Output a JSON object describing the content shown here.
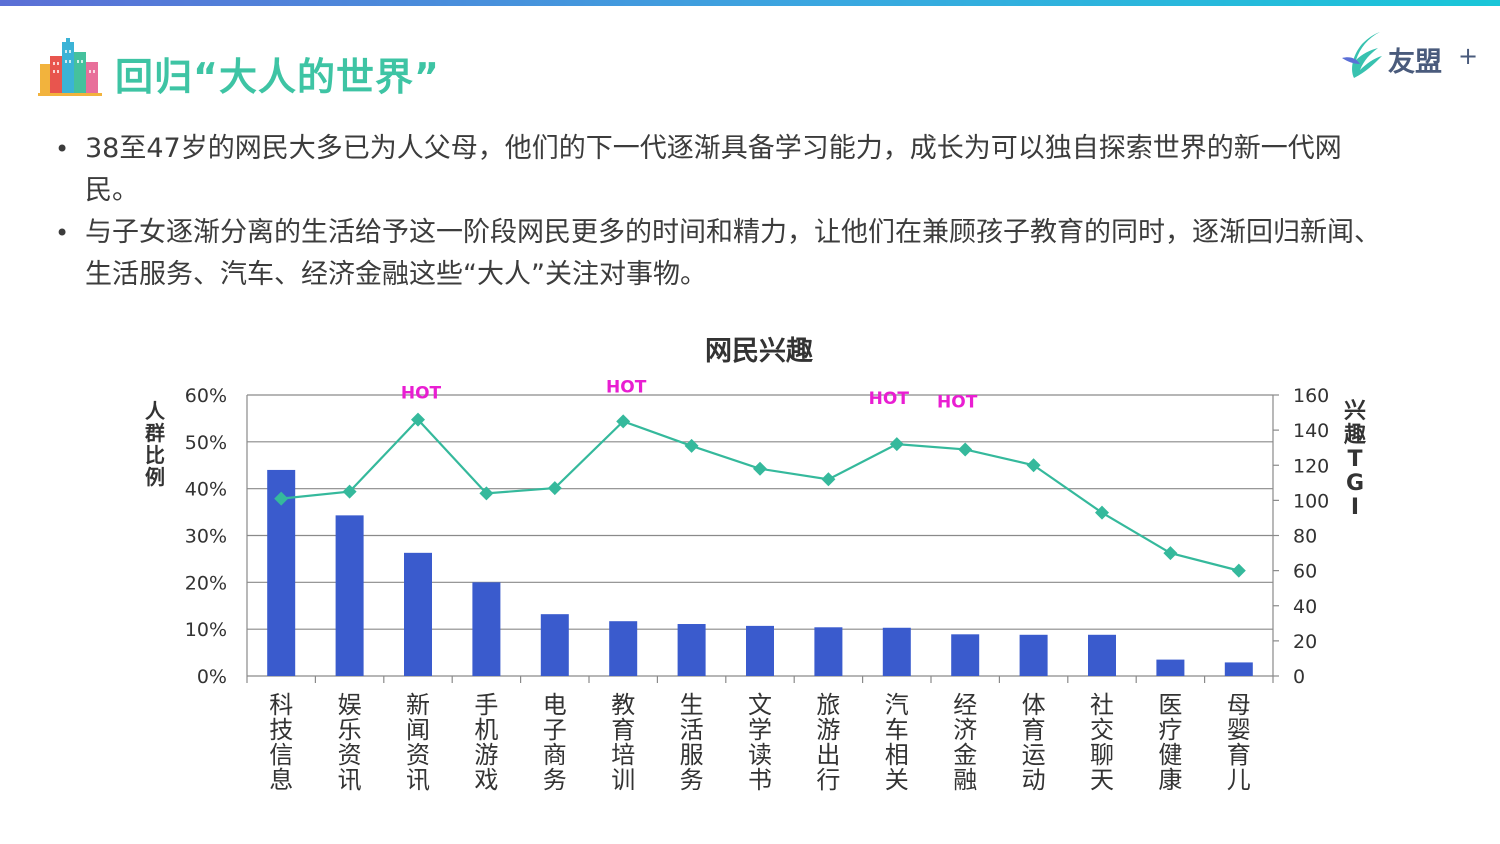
{
  "slide": {
    "title": "回归“大人的世界”",
    "brand": {
      "name": "友盟",
      "plus": "+"
    },
    "bullets": [
      "38至47岁的网民大多已为人父母，他们的下一代逐渐具备学习能力，成长为可以独自探索世界的新一代网民。",
      "与子女逐渐分离的生活给予这一阶段网民更多的时间和精力，让他们在兼顾孩子教育的同时，逐渐回归新闻、生活服务、汽车、经济金融这些“大人”关注对事物。"
    ],
    "bullet_marker": "•"
  },
  "colors": {
    "title": "#3ec4a4",
    "bar": "#3a5bcd",
    "line": "#35b99c",
    "hot": "#e91ed2"
  },
  "chart_data": {
    "type": "bar",
    "title": "网民兴趣",
    "categories": [
      "科技信息",
      "娱乐资讯",
      "新闻资讯",
      "手机游戏",
      "电子商务",
      "教育培训",
      "生活服务",
      "文学读书",
      "旅游出行",
      "汽车相关",
      "经济金融",
      "体育运动",
      "社交聊天",
      "医疗健康",
      "母婴育儿"
    ],
    "y_left": {
      "label": "人群比例",
      "ylim": [
        0,
        60
      ],
      "ticks": [
        "0%",
        "10%",
        "20%",
        "30%",
        "40%",
        "50%",
        "60%"
      ]
    },
    "y_right": {
      "label": "兴趣TGI",
      "ylim": [
        0,
        160
      ],
      "ticks": [
        "0",
        "20",
        "40",
        "60",
        "80",
        "100",
        "120",
        "140",
        "160"
      ]
    },
    "series": [
      {
        "type": "bar",
        "axis": "left",
        "unit": "%",
        "values": [
          44.0,
          34.3,
          26.3,
          20.0,
          13.2,
          11.7,
          11.1,
          10.7,
          10.4,
          10.3,
          8.9,
          8.8,
          8.8,
          3.5,
          2.9
        ]
      },
      {
        "type": "line",
        "axis": "right",
        "values": [
          101,
          105,
          146,
          104,
          107,
          145,
          131,
          118,
          112,
          132,
          129,
          120,
          93,
          70,
          60
        ]
      }
    ],
    "annotations": [
      {
        "category": "新闻资讯",
        "text": "HOT"
      },
      {
        "category": "教育培训",
        "text": "HOT"
      },
      {
        "category": "汽车相关",
        "text": "HOT"
      },
      {
        "category": "经济金融",
        "text": "HOT"
      }
    ],
    "grid": true
  }
}
